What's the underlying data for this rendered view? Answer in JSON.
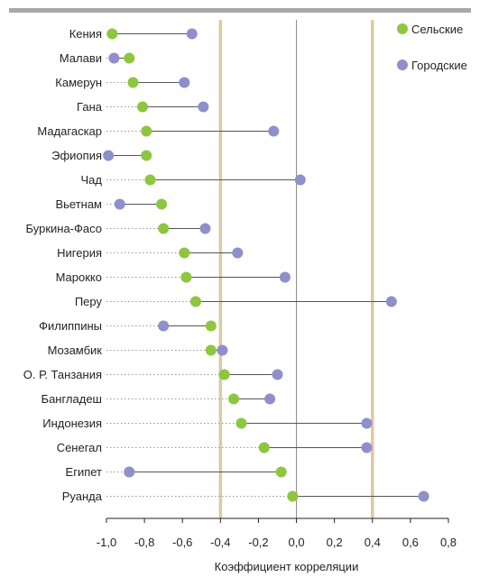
{
  "chart_data": {
    "type": "dumbbell",
    "xlabel": "Коэффициент корреляции",
    "xlim": [
      -1.0,
      0.8
    ],
    "xticks": [
      "-1,0",
      "-0,8",
      "-0,6",
      "-0,4",
      "-0,2",
      "0,0",
      "0,2",
      "0,4",
      "0,6",
      "0,8"
    ],
    "xtick_values": [
      -1.0,
      -0.8,
      -0.6,
      -0.4,
      -0.2,
      0.0,
      0.2,
      0.4,
      0.6,
      0.8
    ],
    "reference_lines": [
      -0.4,
      0.4
    ],
    "legend_position": "top-right",
    "colors": {
      "rural": "#8dc63f",
      "urban": "#8f8fcc",
      "connector": "#555555",
      "dotted": "#9a9a9a",
      "reference": "#dcc9a6",
      "zero_line": "#888888",
      "top_band": "#a8a8a8"
    },
    "series": [
      {
        "name": "Сельские",
        "key": "rural",
        "values": [
          -0.97,
          -0.88,
          -0.86,
          -0.81,
          -0.79,
          -0.79,
          -0.77,
          -0.71,
          -0.7,
          -0.59,
          -0.58,
          -0.53,
          -0.45,
          -0.45,
          -0.38,
          -0.33,
          -0.29,
          -0.17,
          -0.08,
          -0.02
        ]
      },
      {
        "name": "Городские",
        "key": "urban",
        "values": [
          -0.55,
          -0.96,
          -0.59,
          -0.49,
          -0.12,
          -0.99,
          0.02,
          -0.93,
          -0.48,
          -0.31,
          -0.06,
          0.5,
          -0.7,
          -0.39,
          -0.1,
          -0.14,
          0.37,
          0.37,
          -0.88,
          0.67
        ]
      }
    ],
    "categories": [
      "Кения",
      "Малави",
      "Камерун",
      "Гана",
      "Мадагаскар",
      "Эфиопия",
      "Чад",
      "Вьетнам",
      "Буркина-Фасо",
      "Нигерия",
      "Марокко",
      "Перу",
      "Филиппины",
      "Мозамбик",
      "О. Р. Танзания",
      "Бангладеш",
      "Индонезия",
      "Сенегал",
      "Египет",
      "Руанда"
    ]
  }
}
